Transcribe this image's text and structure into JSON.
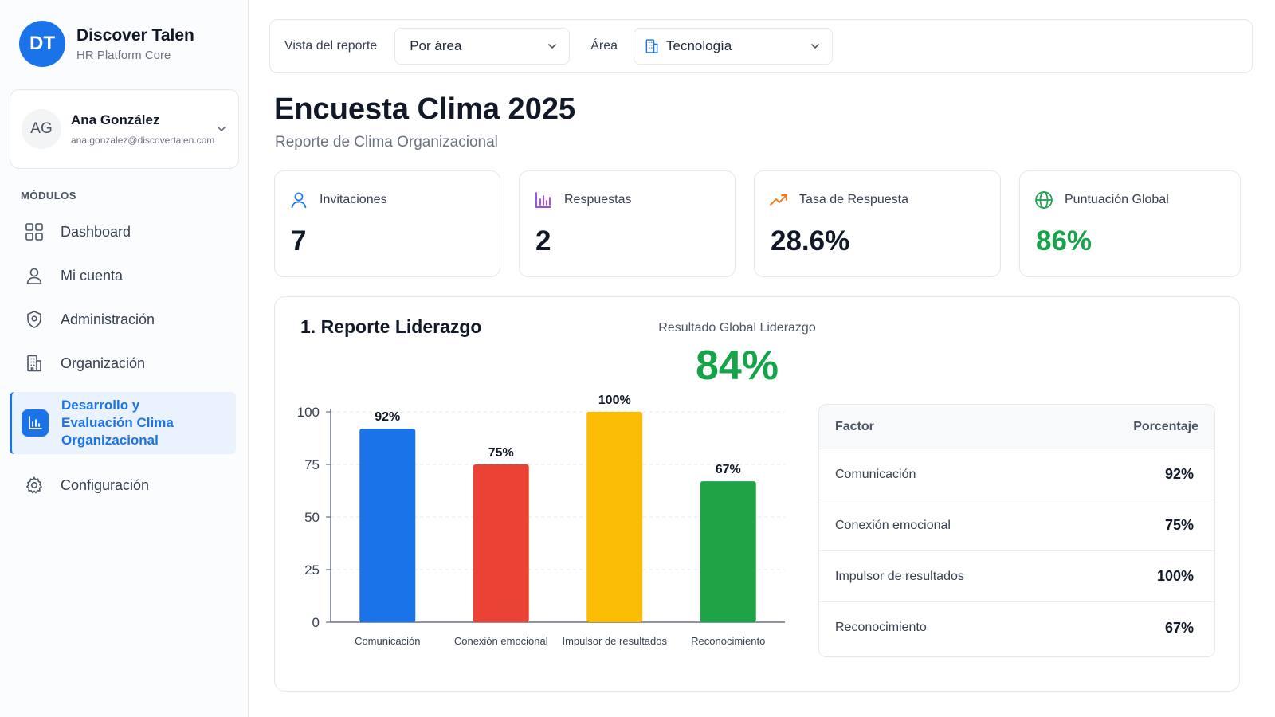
{
  "brand": {
    "logo": "DT",
    "name": "Discover Talen",
    "subtitle": "HR Platform Core"
  },
  "user": {
    "initials": "AG",
    "name": "Ana González",
    "email": "ana.gonzalez@discovertalen.com"
  },
  "sidebar": {
    "section_label": "MÓDULOS",
    "items": [
      {
        "label": "Dashboard",
        "icon": "grid-icon"
      },
      {
        "label": "Mi cuenta",
        "icon": "user-icon"
      },
      {
        "label": "Administración",
        "icon": "shield-icon"
      },
      {
        "label": "Organización",
        "icon": "building-icon"
      },
      {
        "label_lines": [
          "Desarrollo y",
          "Evaluación Clima",
          "Organizacional"
        ],
        "icon": "bar-chart-icon",
        "active": true
      },
      {
        "label": "Configuración",
        "icon": "gear-icon"
      }
    ]
  },
  "filters": {
    "view_label": "Vista del reporte",
    "view_value": "Por área",
    "area_label": "Área",
    "area_value": "Tecnología"
  },
  "page": {
    "title": "Encuesta Clima 2025",
    "subtitle": "Reporte de Clima Organizacional"
  },
  "stats": [
    {
      "label": "Invitaciones",
      "value": "7",
      "icon": "user-icon",
      "icon_color": "#1a73e8",
      "value_color": "#111827"
    },
    {
      "label": "Respuestas",
      "value": "2",
      "icon": "bar-chart-icon",
      "icon_color": "#9333ea",
      "value_color": "#111827"
    },
    {
      "label": "Tasa de Respuesta",
      "value": "28.6%",
      "icon": "trending-up-icon",
      "icon_color": "#f97316",
      "value_color": "#111827"
    },
    {
      "label": "Puntuación Global",
      "value": "86%",
      "icon": "globe-icon",
      "icon_color": "#16a34a",
      "value_color": "#16a34a"
    }
  ],
  "report": {
    "title": "1. Reporte Liderazgo",
    "global_label": "Resultado Global Liderazgo",
    "global_value": "84%",
    "table": {
      "headers": [
        "Factor",
        "Porcentaje"
      ],
      "rows": [
        {
          "factor": "Comunicación",
          "value": "92%"
        },
        {
          "factor": "Conexión emocional",
          "value": "75%"
        },
        {
          "factor": "Impulsor de resultados",
          "value": "100%"
        },
        {
          "factor": "Reconocimiento",
          "value": "67%"
        }
      ]
    }
  },
  "chart_data": {
    "type": "bar",
    "categories": [
      "Comunicación",
      "Conexión emocional",
      "Impulsor de resultados",
      "Reconocimiento"
    ],
    "values": [
      92,
      75,
      100,
      67
    ],
    "data_labels": [
      "92%",
      "75%",
      "100%",
      "67%"
    ],
    "colors": [
      "#1a73e8",
      "#ea4335",
      "#fbbc04",
      "#1ea446"
    ],
    "yticks": [
      0,
      25,
      50,
      75,
      100
    ],
    "ylim": [
      0,
      100
    ],
    "grid": true,
    "title": "",
    "xlabel": "",
    "ylabel": ""
  }
}
